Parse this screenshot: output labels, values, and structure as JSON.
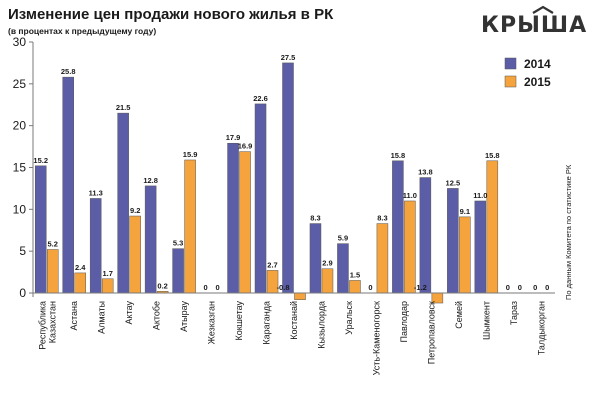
{
  "chart_data": {
    "type": "bar",
    "title": "Изменение цен продажи нового жилья в РК",
    "subtitle": "(в процентах к предыдущему году)",
    "categories": [
      "Республика Казахстан",
      "Астана",
      "Алматы",
      "Актау",
      "Актобе",
      "Атырау",
      "Жезказган",
      "Кокшетау",
      "Караганда",
      "Костанай",
      "Кызылорда",
      "Уральск",
      "Усть-Каменогорск",
      "Павлодар",
      "Петропавловск",
      "Семей",
      "Шымкент",
      "Тараз",
      "Талдыкорган"
    ],
    "series": [
      {
        "name": "2014",
        "color": "#5b5ea6",
        "values": [
          15.2,
          25.8,
          11.3,
          21.5,
          12.8,
          5.3,
          0,
          17.9,
          22.6,
          27.5,
          8.3,
          5.9,
          0,
          15.8,
          13.8,
          12.5,
          11.0,
          0,
          0
        ]
      },
      {
        "name": "2015",
        "color": "#f5a33c",
        "values": [
          5.2,
          2.4,
          1.7,
          9.2,
          0.2,
          15.9,
          0,
          16.9,
          2.7,
          -0.8,
          2.9,
          1.5,
          8.3,
          11.0,
          -1.2,
          9.1,
          15.8,
          0,
          0
        ]
      }
    ],
    "value_labels": [
      [
        "15.2",
        "25.8",
        "11.3",
        "21.5",
        "12.8",
        "5.3",
        "0",
        "17.9",
        "22.6",
        "27.5",
        "8.3",
        "5.9",
        "0",
        "15.8",
        "13.8",
        "12.5",
        "11.0",
        "0",
        "0"
      ],
      [
        "5.2",
        "2.4",
        "1.7",
        "9.2",
        "0.2",
        "15.9",
        "0",
        "16.9",
        "2.7",
        "-0.8",
        "2.9",
        "1.5",
        "8.3",
        "11.0",
        "-1.2",
        "9.1",
        "15.8",
        "0",
        "0"
      ]
    ],
    "ylim": [
      0,
      30
    ],
    "yticks": [
      0,
      5,
      10,
      15,
      20,
      25,
      30
    ],
    "grid": false,
    "legend_position": "top-right"
  },
  "brand": {
    "logo_text": "КРЫША"
  },
  "source_note": "По данным Комитета по статистике РК",
  "colors": {
    "axis": "#7a7a7a",
    "bar_outline": "#555555"
  }
}
